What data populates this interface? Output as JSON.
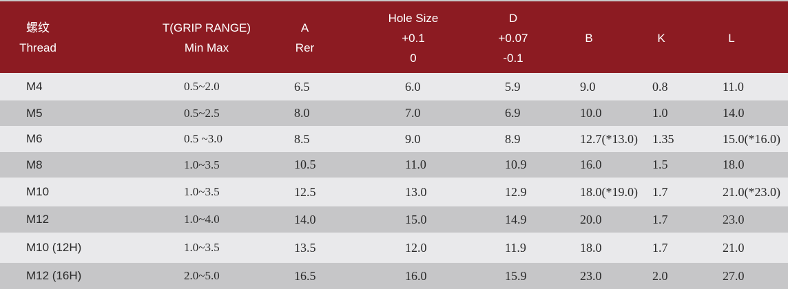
{
  "header": {
    "thread": [
      "螺纹",
      "Thread"
    ],
    "grip": [
      "T(GRIP RANGE)",
      "Min Max"
    ],
    "a": [
      "A",
      "Rer"
    ],
    "hole": [
      "Hole Size",
      "+0.1",
      "0"
    ],
    "d": [
      "D",
      "+0.07",
      "-0.1"
    ],
    "b": [
      "B"
    ],
    "k": [
      "K"
    ],
    "l": [
      "L"
    ]
  },
  "rows": [
    {
      "thread": "M4",
      "grip": "0.5~2.0",
      "a": "6.5",
      "hole": "6.0",
      "d": "5.9",
      "b": "9.0",
      "k": "0.8",
      "l": "11.0"
    },
    {
      "thread": "M5",
      "grip": "0.5~2.5",
      "a": "8.0",
      "hole": "7.0",
      "d": "6.9",
      "b": "10.0",
      "k": "1.0",
      "l": "14.0"
    },
    {
      "thread": "M6",
      "grip": "0.5 ~3.0",
      "a": "8.5",
      "hole": "9.0",
      "d": "8.9",
      "b": "12.7(*13.0)",
      "k": "1.35",
      "l": "15.0(*16.0)"
    },
    {
      "thread": "M8",
      "grip": "1.0~3.5",
      "a": "10.5",
      "hole": "11.0",
      "d": "10.9",
      "b": "16.0",
      "k": "1.5",
      "l": "18.0"
    },
    {
      "thread": "M10",
      "grip": "1.0~3.5",
      "a": "12.5",
      "hole": "13.0",
      "d": "12.9",
      "b": "18.0(*19.0)",
      "k": "1.7",
      "l": "21.0(*23.0)"
    },
    {
      "thread": "M12",
      "grip": "1.0~4.0",
      "a": "14.0",
      "hole": "15.0",
      "d": "14.9",
      "b": "20.0",
      "k": "1.7",
      "l": "23.0"
    },
    {
      "thread": "M10 (12H)",
      "grip": "1.0~3.5",
      "a": "13.5",
      "hole": "12.0",
      "d": "11.9",
      "b": "18.0",
      "k": "1.7",
      "l": "21.0"
    },
    {
      "thread": "M12 (16H)",
      "grip": "2.0~5.0",
      "a": "16.5",
      "hole": "16.0",
      "d": "15.9",
      "b": "23.0",
      "k": "2.0",
      "l": "27.0"
    }
  ]
}
